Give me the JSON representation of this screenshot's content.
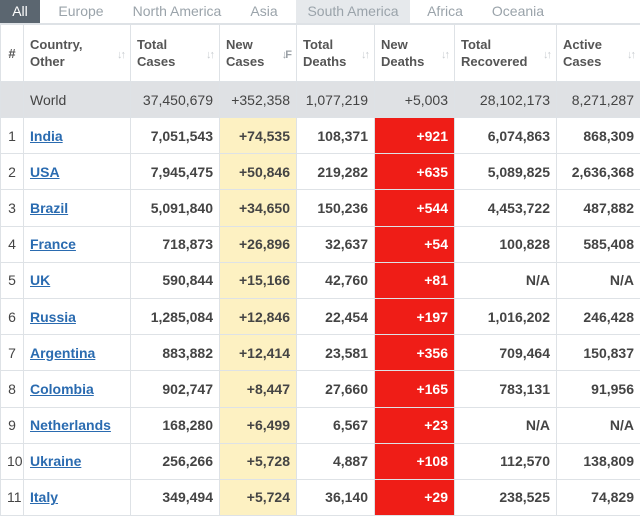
{
  "tabs": [
    "All",
    "Europe",
    "North America",
    "Asia",
    "South America",
    "Africa",
    "Oceania"
  ],
  "headers": {
    "hash": "#",
    "country": [
      "Country,",
      "Other"
    ],
    "total_cases": [
      "Total",
      "Cases"
    ],
    "new_cases": [
      "New",
      "Cases"
    ],
    "total_deaths": [
      "Total",
      "Deaths"
    ],
    "new_deaths": [
      "New",
      "Deaths"
    ],
    "total_recovered": [
      "Total",
      "Recovered"
    ],
    "active_cases": [
      "Active",
      "Cases"
    ]
  },
  "sort_icons": [
    "sort-icon",
    "sort-active-icon"
  ],
  "colors": {
    "new_cases_bg": "#fdf1c2",
    "new_deaths_bg": "#ef1d17",
    "link": "#2a6bb0",
    "world_bg": "#dfe1e4"
  },
  "world": {
    "name": "World",
    "total_cases": "37,450,679",
    "new_cases": "+352,358",
    "total_deaths": "1,077,219",
    "new_deaths": "+5,003",
    "total_recovered": "28,102,173",
    "active_cases": "8,271,287"
  },
  "rows": [
    {
      "idx": "1",
      "country": "India",
      "total_cases": "7,051,543",
      "new_cases": "+74,535",
      "total_deaths": "108,371",
      "new_deaths": "+921",
      "total_recovered": "6,074,863",
      "active_cases": "868,309"
    },
    {
      "idx": "2",
      "country": "USA",
      "total_cases": "7,945,475",
      "new_cases": "+50,846",
      "total_deaths": "219,282",
      "new_deaths": "+635",
      "total_recovered": "5,089,825",
      "active_cases": "2,636,368"
    },
    {
      "idx": "3",
      "country": "Brazil",
      "total_cases": "5,091,840",
      "new_cases": "+34,650",
      "total_deaths": "150,236",
      "new_deaths": "+544",
      "total_recovered": "4,453,722",
      "active_cases": "487,882"
    },
    {
      "idx": "4",
      "country": "France",
      "total_cases": "718,873",
      "new_cases": "+26,896",
      "total_deaths": "32,637",
      "new_deaths": "+54",
      "total_recovered": "100,828",
      "active_cases": "585,408"
    },
    {
      "idx": "5",
      "country": "UK",
      "total_cases": "590,844",
      "new_cases": "+15,166",
      "total_deaths": "42,760",
      "new_deaths": "+81",
      "total_recovered": "N/A",
      "active_cases": "N/A"
    },
    {
      "idx": "6",
      "country": "Russia",
      "total_cases": "1,285,084",
      "new_cases": "+12,846",
      "total_deaths": "22,454",
      "new_deaths": "+197",
      "total_recovered": "1,016,202",
      "active_cases": "246,428"
    },
    {
      "idx": "7",
      "country": "Argentina",
      "total_cases": "883,882",
      "new_cases": "+12,414",
      "total_deaths": "23,581",
      "new_deaths": "+356",
      "total_recovered": "709,464",
      "active_cases": "150,837"
    },
    {
      "idx": "8",
      "country": "Colombia",
      "total_cases": "902,747",
      "new_cases": "+8,447",
      "total_deaths": "27,660",
      "new_deaths": "+165",
      "total_recovered": "783,131",
      "active_cases": "91,956"
    },
    {
      "idx": "9",
      "country": "Netherlands",
      "total_cases": "168,280",
      "new_cases": "+6,499",
      "total_deaths": "6,567",
      "new_deaths": "+23",
      "total_recovered": "N/A",
      "active_cases": "N/A"
    },
    {
      "idx": "10",
      "country": "Ukraine",
      "total_cases": "256,266",
      "new_cases": "+5,728",
      "total_deaths": "4,887",
      "new_deaths": "+108",
      "total_recovered": "112,570",
      "active_cases": "138,809"
    },
    {
      "idx": "11",
      "country": "Italy",
      "total_cases": "349,494",
      "new_cases": "+5,724",
      "total_deaths": "36,140",
      "new_deaths": "+29",
      "total_recovered": "238,525",
      "active_cases": "74,829"
    }
  ]
}
